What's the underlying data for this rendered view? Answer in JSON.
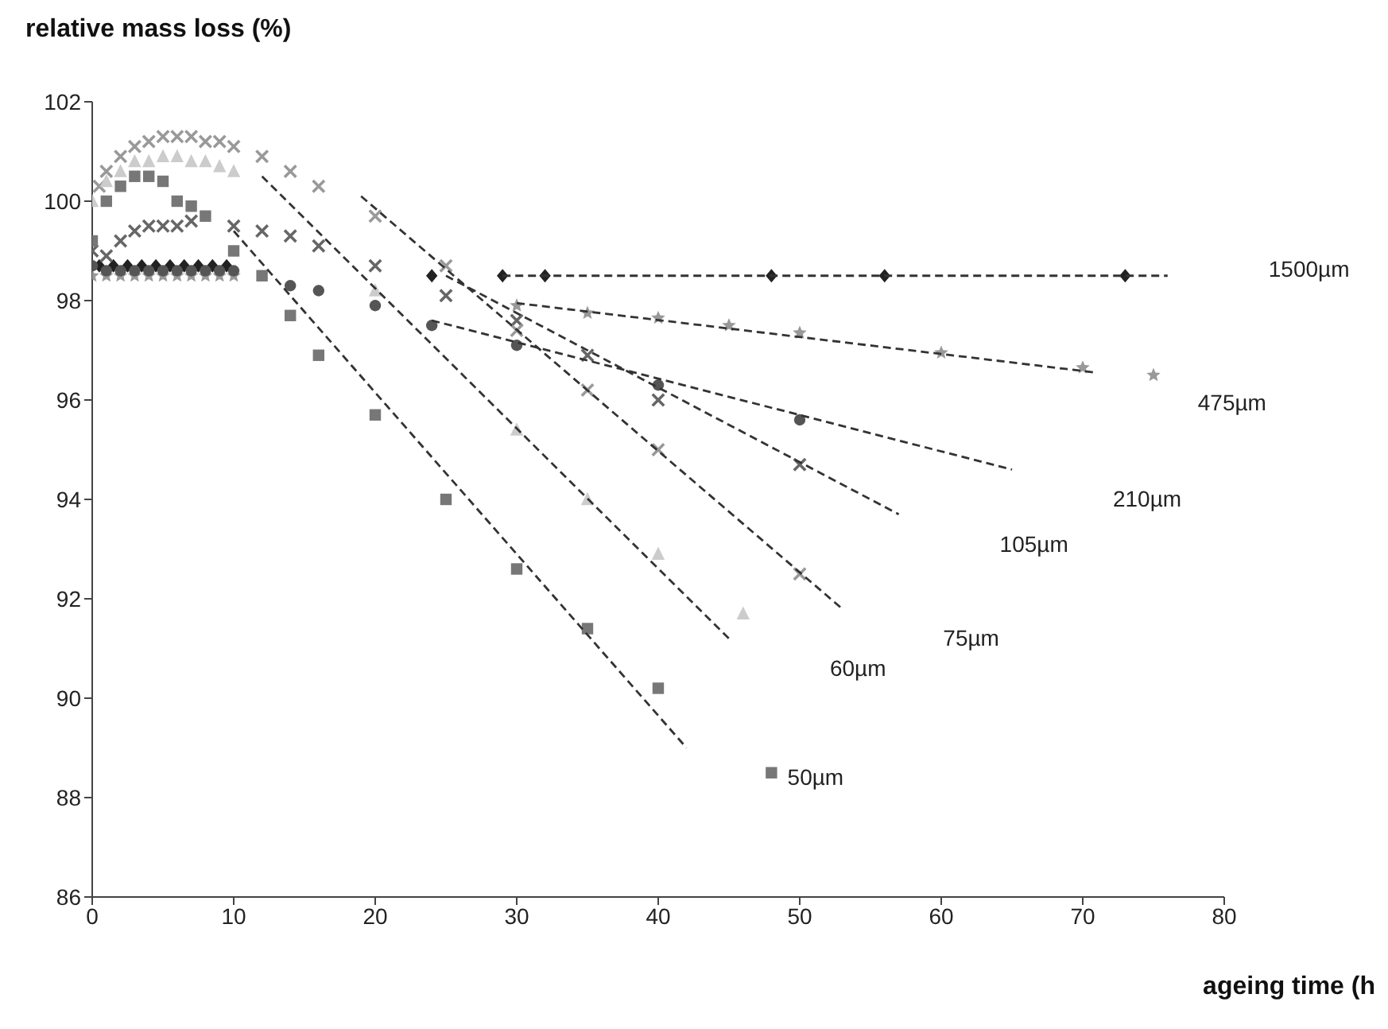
{
  "chart_data": {
    "type": "scatter",
    "ylabel": "relative mass loss (%)",
    "xlabel": "ageing time (h",
    "xlim": [
      0,
      80
    ],
    "xticks": [
      0,
      10,
      20,
      30,
      40,
      50,
      60,
      70,
      80
    ],
    "ylim": [
      86,
      102
    ],
    "yticks": [
      86,
      88,
      90,
      92,
      94,
      96,
      98,
      100,
      102
    ],
    "grid": false,
    "legend": false,
    "series": [
      {
        "color": "#222222",
        "marker": "diamond",
        "x": [
          0.5,
          1.5,
          2.5,
          3.5,
          4.5,
          5.5,
          6.5,
          7.5,
          8.5,
          9.5,
          24,
          29,
          32,
          48,
          56,
          73
        ],
        "values": [
          98.7,
          98.7,
          98.7,
          98.7,
          98.7,
          98.7,
          98.7,
          98.7,
          98.7,
          98.7,
          98.5,
          98.5,
          98.5,
          98.5,
          98.5,
          98.5
        ]
      },
      {
        "color": "#999999",
        "marker": "star",
        "x": [
          0,
          1,
          2,
          3,
          4,
          5,
          6,
          7,
          8,
          9,
          10,
          30,
          35,
          40,
          45,
          50,
          60,
          70,
          75
        ],
        "values": [
          98.5,
          98.5,
          98.5,
          98.5,
          98.5,
          98.5,
          98.5,
          98.5,
          98.5,
          98.5,
          98.5,
          97.9,
          97.75,
          97.65,
          97.5,
          97.35,
          96.95,
          96.65,
          96.5
        ]
      },
      {
        "color": "#555555",
        "marker": "circle",
        "x": [
          0,
          1,
          2,
          3,
          4,
          5,
          6,
          7,
          8,
          9,
          10,
          14,
          16,
          20,
          24,
          30,
          40,
          50
        ],
        "values": [
          98.7,
          98.6,
          98.6,
          98.6,
          98.6,
          98.6,
          98.6,
          98.6,
          98.6,
          98.6,
          98.6,
          98.3,
          98.2,
          97.9,
          97.5,
          97.1,
          96.3,
          95.6
        ]
      },
      {
        "color": "#666666",
        "marker": "cross",
        "x": [
          0,
          1,
          2,
          3,
          4,
          5,
          6,
          7,
          10,
          12,
          14,
          16,
          20,
          25,
          30,
          35,
          40,
          50
        ],
        "values": [
          99.0,
          98.9,
          99.2,
          99.4,
          99.5,
          99.5,
          99.5,
          99.6,
          99.5,
          99.4,
          99.3,
          99.1,
          98.7,
          98.1,
          97.6,
          96.9,
          96.0,
          94.7
        ]
      },
      {
        "color": "#999999",
        "marker": "cross",
        "x": [
          0.5,
          1,
          2,
          3,
          4,
          5,
          6,
          7,
          8,
          9,
          10,
          12,
          14,
          16,
          20,
          25,
          30,
          35,
          40,
          50
        ],
        "values": [
          100.3,
          100.6,
          100.9,
          101.1,
          101.2,
          101.3,
          101.3,
          101.3,
          101.2,
          101.2,
          101.1,
          100.9,
          100.6,
          100.3,
          99.7,
          98.7,
          97.4,
          96.2,
          95.0,
          92.5
        ]
      },
      {
        "color": "#cccccc",
        "marker": "triangle",
        "x": [
          0,
          1,
          2,
          3,
          4,
          5,
          6,
          7,
          8,
          9,
          10,
          20,
          30,
          35,
          40,
          46
        ],
        "values": [
          100.0,
          100.4,
          100.6,
          100.8,
          100.8,
          100.9,
          100.9,
          100.8,
          100.8,
          100.7,
          100.6,
          98.2,
          95.4,
          94.0,
          92.9,
          91.7
        ]
      },
      {
        "color": "#777777",
        "marker": "square",
        "x": [
          0,
          1,
          2,
          3,
          4,
          5,
          6,
          7,
          8,
          10,
          12,
          14,
          16,
          20,
          25,
          30,
          35,
          40,
          48
        ],
        "values": [
          99.2,
          100.0,
          100.3,
          100.5,
          100.5,
          100.4,
          100.0,
          99.9,
          99.7,
          99.0,
          98.5,
          97.7,
          96.9,
          95.7,
          94.0,
          92.6,
          91.4,
          90.2,
          88.5
        ]
      },
      {
        "type": "line",
        "name": "1500µm",
        "color": "#333333",
        "line_style": "dashed",
        "marker": "none",
        "x": [
          29,
          76
        ],
        "values": [
          98.5,
          98.5
        ]
      },
      {
        "type": "line",
        "name": "475µm",
        "color": "#333333",
        "line_style": "dashed",
        "marker": "none",
        "x": [
          30,
          71
        ],
        "values": [
          97.95,
          96.55
        ]
      },
      {
        "type": "line",
        "name": "210µm",
        "color": "#333333",
        "line_style": "dashed",
        "marker": "none",
        "x": [
          24,
          65
        ],
        "values": [
          97.6,
          94.6
        ]
      },
      {
        "type": "line",
        "name": "105µm",
        "color": "#333333",
        "line_style": "dashed",
        "marker": "none",
        "x": [
          25,
          57
        ],
        "values": [
          98.5,
          93.7
        ]
      },
      {
        "type": "line",
        "name": "75µm",
        "color": "#333333",
        "line_style": "dashed",
        "marker": "none",
        "x": [
          19,
          53
        ],
        "values": [
          100.1,
          91.8
        ]
      },
      {
        "type": "line",
        "name": "60µm",
        "color": "#333333",
        "line_style": "dashed",
        "marker": "none",
        "x": [
          12,
          45
        ],
        "values": [
          100.5,
          91.2
        ]
      },
      {
        "type": "line",
        "name": "50µm",
        "color": "#333333",
        "line_style": "dashed",
        "marker": "none",
        "x": [
          10,
          42
        ],
        "values": [
          99.4,
          89.0
        ]
      }
    ]
  }
}
